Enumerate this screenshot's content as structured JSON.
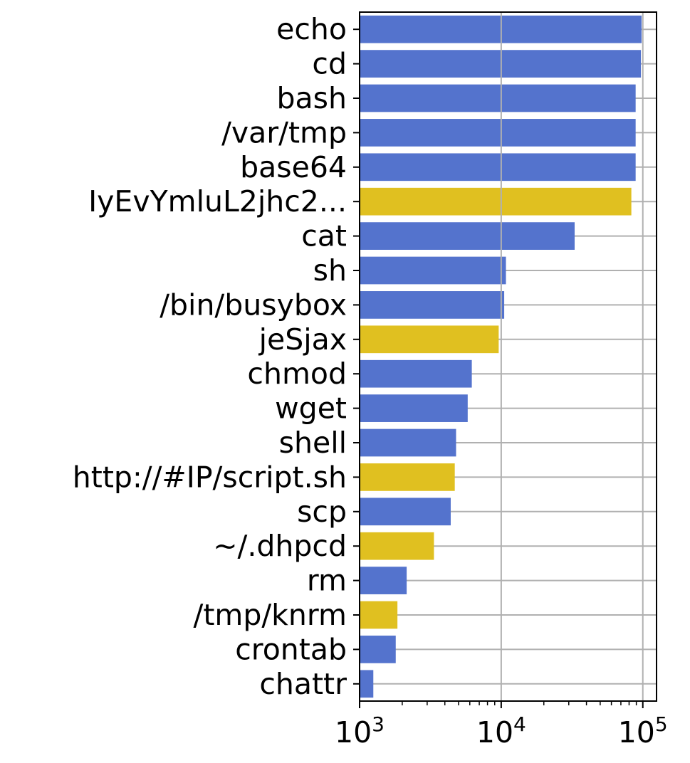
{
  "chart_data": {
    "type": "bar",
    "orientation": "horizontal",
    "title": "",
    "xlabel": "",
    "ylabel": "",
    "x_scale": "log",
    "xlim": [
      1000,
      125000
    ],
    "grid": true,
    "legend": "none",
    "categories": [
      "echo",
      "cd",
      "bash",
      "/var/tmp",
      "base64",
      "IyEvYmluL2jhc2...",
      "cat",
      "sh",
      "/bin/busybox",
      "jeSjax",
      "chmod",
      "wget",
      "shell",
      "http://#IP/script.sh",
      "scp",
      "~/.dhpcd",
      "rm",
      "/tmp/knrm",
      "crontab",
      "chattr"
    ],
    "values": [
      98000,
      97000,
      89000,
      89000,
      89000,
      83000,
      33000,
      10800,
      10500,
      9600,
      6200,
      5800,
      4800,
      4700,
      4400,
      3350,
      2150,
      1850,
      1800,
      1250
    ],
    "highlight": [
      false,
      false,
      false,
      false,
      false,
      true,
      false,
      false,
      false,
      true,
      false,
      false,
      false,
      true,
      false,
      true,
      false,
      true,
      false,
      false
    ],
    "colors": {
      "default": "#5473cd",
      "highlight": "#e0c020",
      "grid": "#b0b0b0",
      "axis": "#000000"
    },
    "x_ticks": [
      {
        "value": 1000,
        "base": "10",
        "exp": "3"
      },
      {
        "value": 10000,
        "base": "10",
        "exp": "4"
      },
      {
        "value": 100000,
        "base": "10",
        "exp": "5"
      }
    ]
  }
}
